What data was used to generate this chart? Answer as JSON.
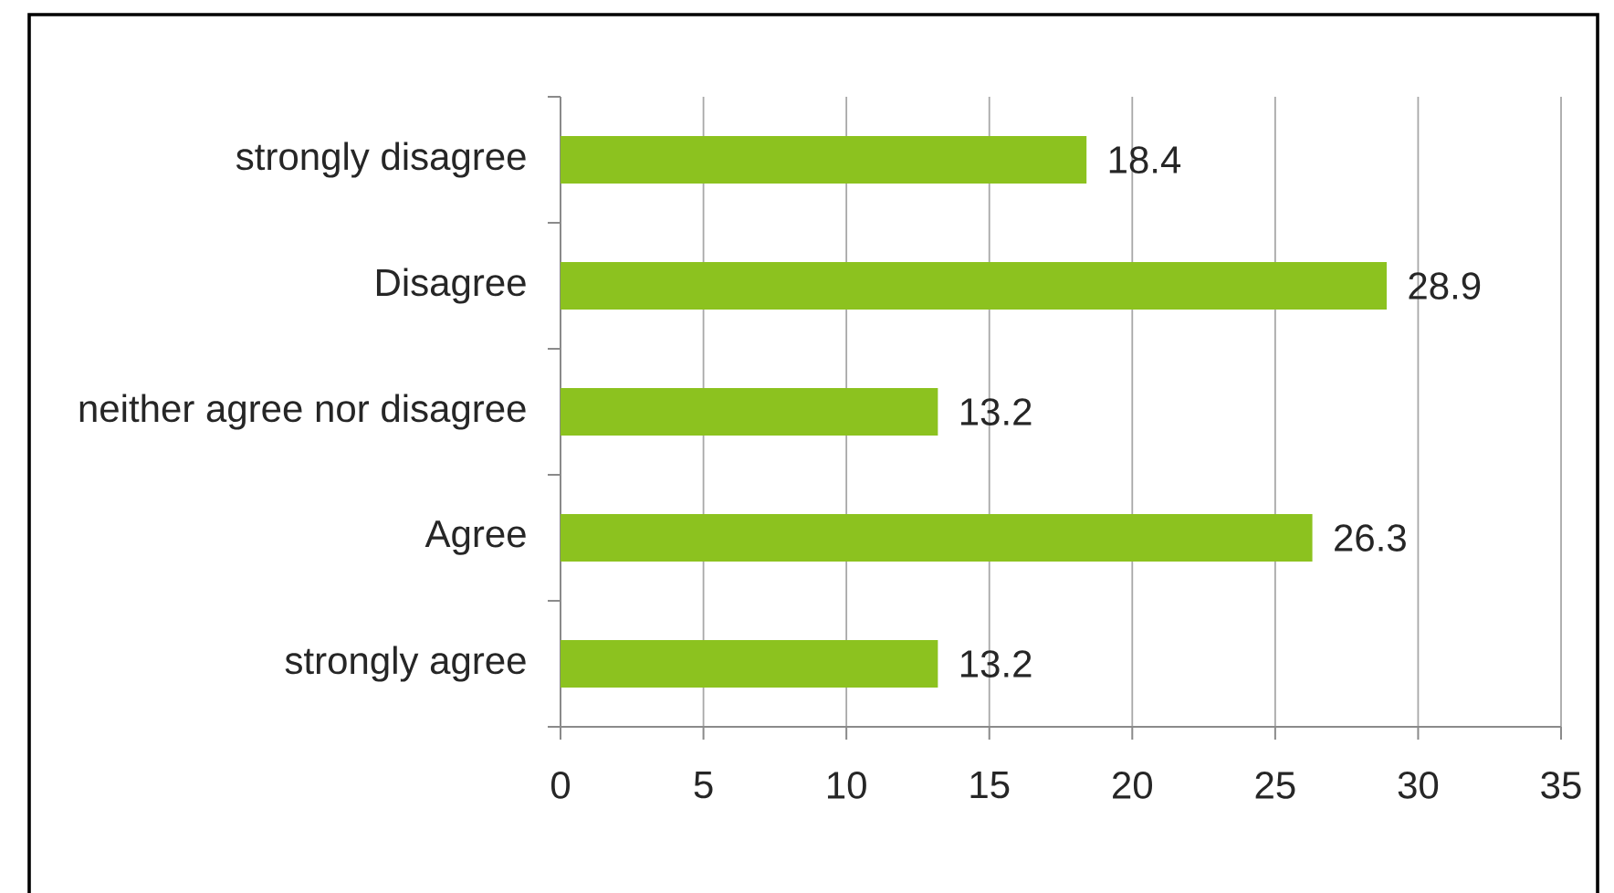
{
  "chart_data": {
    "type": "bar",
    "orientation": "horizontal",
    "categories": [
      "strongly disagree",
      "Disagree",
      "neither agree nor disagree",
      "Agree",
      "strongly agree"
    ],
    "values": [
      18.4,
      28.9,
      13.2,
      26.3,
      13.2
    ],
    "color": "#8cc21f",
    "xlim": [
      0,
      35
    ],
    "xticks": [
      0,
      5,
      10,
      15,
      20,
      25,
      30,
      35
    ],
    "grid": "x",
    "data_labels": true
  }
}
